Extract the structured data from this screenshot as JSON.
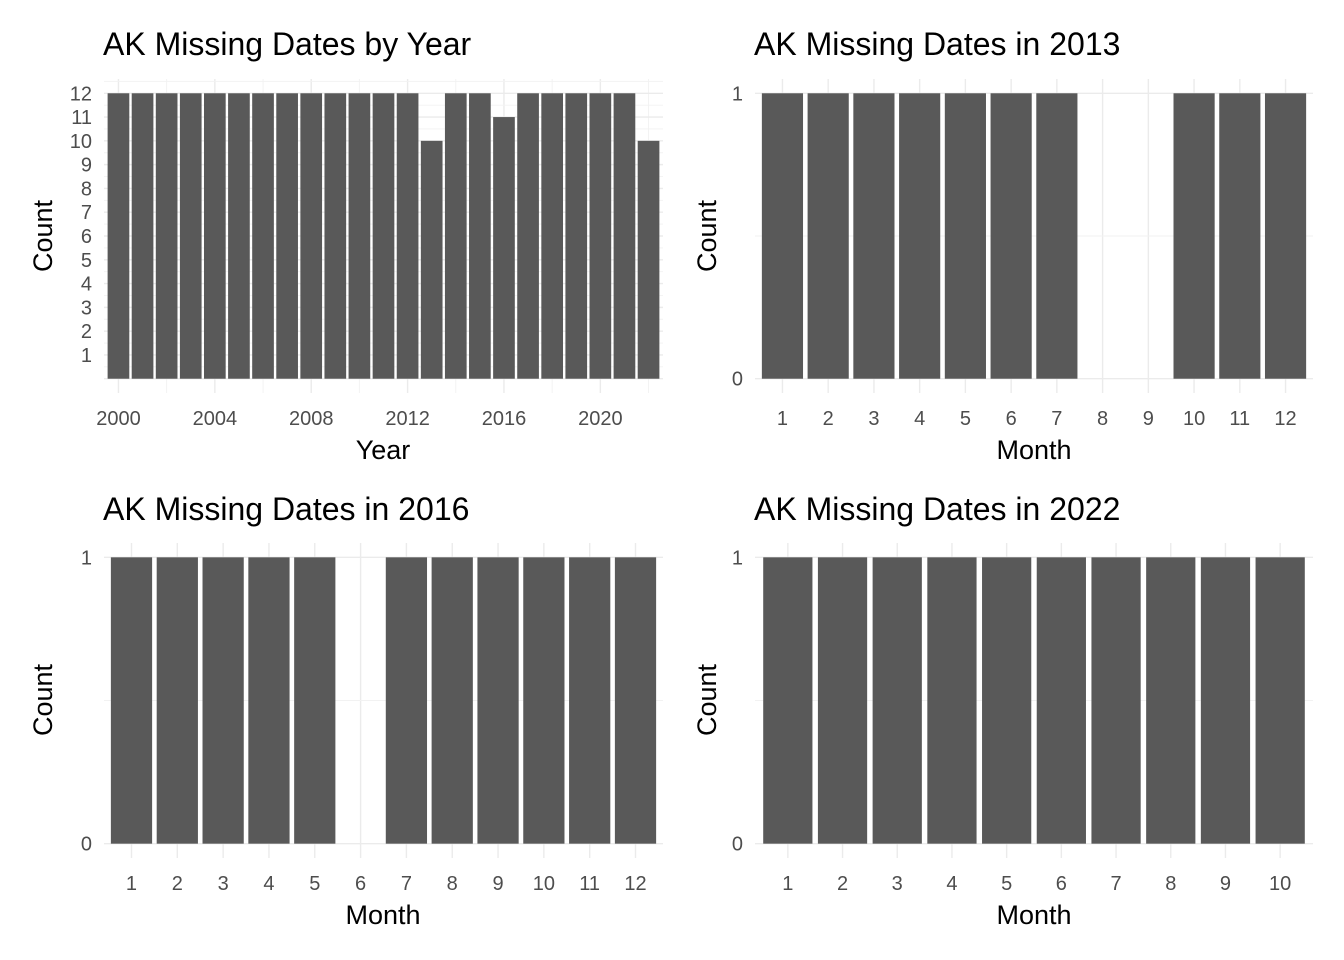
{
  "chart_data": [
    {
      "type": "bar",
      "title": "AK Missing Dates by Year",
      "xlabel": "Year",
      "ylabel": "Count",
      "categories": [
        "2000",
        "2001",
        "2002",
        "2003",
        "2004",
        "2005",
        "2006",
        "2007",
        "2008",
        "2009",
        "2010",
        "2011",
        "2012",
        "2013",
        "2014",
        "2015",
        "2016",
        "2017",
        "2018",
        "2019",
        "2020",
        "2021",
        "2022"
      ],
      "values": [
        12,
        12,
        12,
        12,
        12,
        12,
        12,
        12,
        12,
        12,
        12,
        12,
        12,
        10,
        12,
        12,
        11,
        12,
        12,
        12,
        12,
        12,
        10
      ],
      "xtick_labels": [
        "2000",
        "2004",
        "2008",
        "2012",
        "2016",
        "2020"
      ],
      "ytick_labels": [
        "1",
        "2",
        "3",
        "4",
        "5",
        "6",
        "7",
        "8",
        "9",
        "10",
        "11",
        "12"
      ],
      "ylim": [
        0,
        12
      ],
      "grid": true,
      "bar_color": "#595959"
    },
    {
      "type": "bar",
      "title": "AK Missing Dates in 2013",
      "xlabel": "Month",
      "ylabel": "Count",
      "categories": [
        "1",
        "2",
        "3",
        "4",
        "5",
        "6",
        "7",
        "8",
        "9",
        "10",
        "11",
        "12"
      ],
      "values": [
        1,
        1,
        1,
        1,
        1,
        1,
        1,
        0,
        0,
        1,
        1,
        1
      ],
      "ytick_labels": [
        "0",
        "1"
      ],
      "ylim": [
        0,
        1
      ],
      "grid": true,
      "bar_color": "#595959"
    },
    {
      "type": "bar",
      "title": "AK Missing Dates in 2016",
      "xlabel": "Month",
      "ylabel": "Count",
      "categories": [
        "1",
        "2",
        "3",
        "4",
        "5",
        "6",
        "7",
        "8",
        "9",
        "10",
        "11",
        "12"
      ],
      "values": [
        1,
        1,
        1,
        1,
        1,
        0,
        1,
        1,
        1,
        1,
        1,
        1
      ],
      "ytick_labels": [
        "0",
        "1"
      ],
      "ylim": [
        0,
        1
      ],
      "grid": true,
      "bar_color": "#595959"
    },
    {
      "type": "bar",
      "title": "AK Missing Dates in 2022",
      "xlabel": "Month",
      "ylabel": "Count",
      "categories": [
        "1",
        "2",
        "3",
        "4",
        "5",
        "6",
        "7",
        "8",
        "9",
        "10"
      ],
      "values": [
        1,
        1,
        1,
        1,
        1,
        1,
        1,
        1,
        1,
        1
      ],
      "ytick_labels": [
        "0",
        "1"
      ],
      "ylim": [
        0,
        1
      ],
      "grid": true,
      "bar_color": "#595959"
    }
  ]
}
